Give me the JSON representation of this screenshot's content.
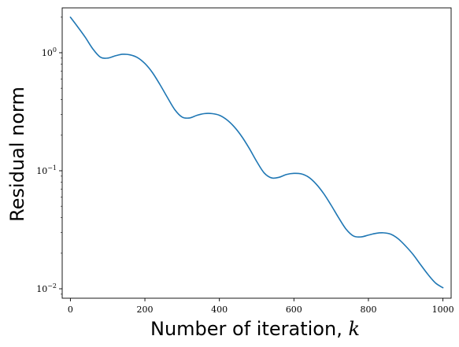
{
  "chart_data": {
    "type": "line",
    "title": "",
    "xlabel": "Number of iteration, ",
    "xlabel_math": "k",
    "ylabel": "Residual norm",
    "xlim": [
      -22,
      1022
    ],
    "ylim_log10": [
      -2.08,
      0.38
    ],
    "yscale": "log",
    "grid": false,
    "legend": "none",
    "line_color": "#1f77b4",
    "x_ticks": [
      {
        "value": 0,
        "label": "0"
      },
      {
        "value": 200,
        "label": "200"
      },
      {
        "value": 400,
        "label": "400"
      },
      {
        "value": 600,
        "label": "600"
      },
      {
        "value": 800,
        "label": "800"
      },
      {
        "value": 1000,
        "label": "1000"
      }
    ],
    "y_ticks": [
      {
        "value": 1,
        "base": "10",
        "exp": "0"
      },
      {
        "value": 0.1,
        "base": "10",
        "exp": "−1"
      },
      {
        "value": 0.01,
        "base": "10",
        "exp": "−2"
      }
    ],
    "series": [
      {
        "x": [
          0,
          20,
          40,
          60,
          80,
          100,
          120,
          140,
          160,
          180,
          200,
          220,
          240,
          260,
          280,
          300,
          320,
          340,
          360,
          380,
          400,
          420,
          440,
          460,
          480,
          500,
          520,
          540,
          560,
          580,
          600,
          620,
          640,
          660,
          680,
          700,
          720,
          740,
          760,
          780,
          800,
          820,
          840,
          860,
          880,
          900,
          920,
          940,
          960,
          980,
          1000
        ],
        "y": [
          2.0,
          1.65,
          1.35,
          1.08,
          0.92,
          0.9,
          0.94,
          0.97,
          0.96,
          0.91,
          0.81,
          0.68,
          0.54,
          0.42,
          0.33,
          0.285,
          0.28,
          0.295,
          0.305,
          0.305,
          0.295,
          0.27,
          0.235,
          0.195,
          0.155,
          0.12,
          0.096,
          0.087,
          0.088,
          0.093,
          0.095,
          0.094,
          0.088,
          0.077,
          0.064,
          0.051,
          0.04,
          0.032,
          0.028,
          0.0275,
          0.0285,
          0.0295,
          0.0298,
          0.029,
          0.0265,
          0.023,
          0.0195,
          0.016,
          0.0132,
          0.0112,
          0.0102
        ]
      }
    ]
  }
}
